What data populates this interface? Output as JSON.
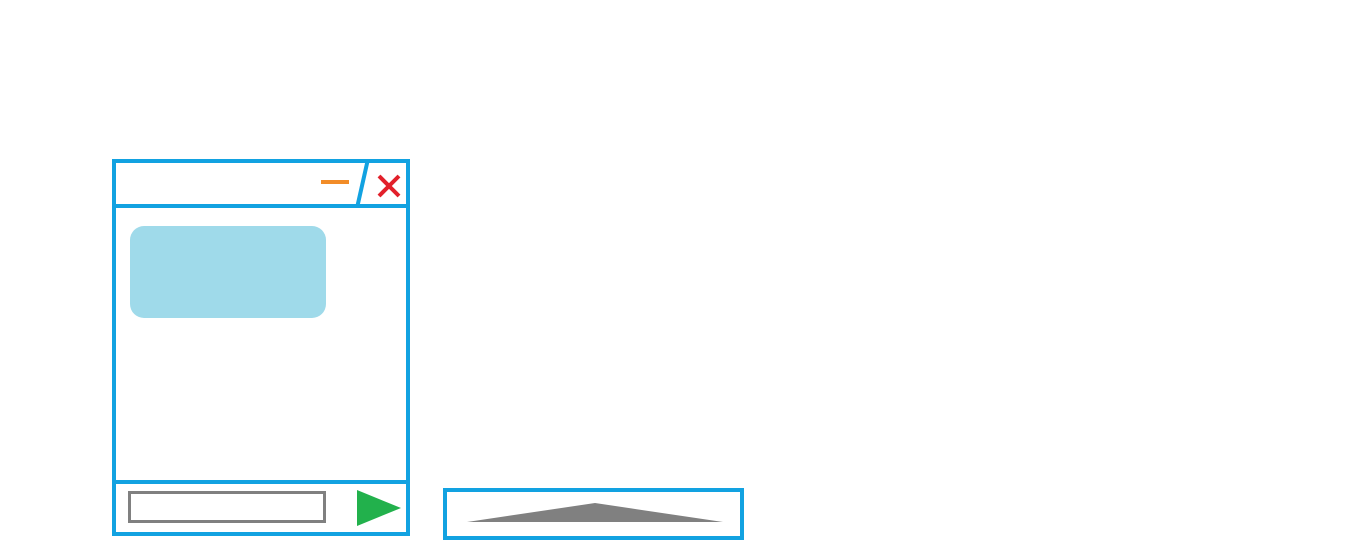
{
  "colors": {
    "window_border": "#12a2e1",
    "minimize": "#f28c28",
    "close": "#e2202a",
    "message_bubble": "#9fdaea",
    "input_border": "#808080",
    "send": "#22b14c",
    "launcher_arrow": "#808080"
  },
  "chat_window": {
    "title_bar": {
      "minimize_icon": "minimize-dash",
      "close_icon": "x-mark"
    },
    "message_area": {
      "messages": [
        {
          "sender": "bot",
          "text": ""
        }
      ]
    },
    "input_bar": {
      "input_value": "",
      "send_icon": "play-triangle"
    }
  },
  "launcher": {
    "icon": "up-arrow-triangle"
  }
}
